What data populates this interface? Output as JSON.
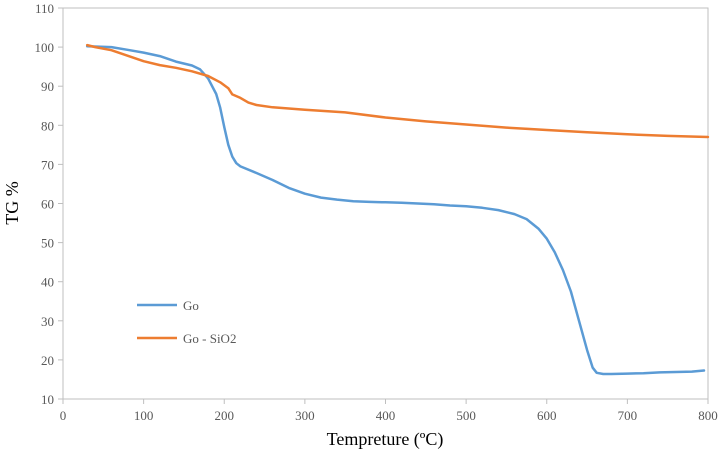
{
  "chart_data": {
    "type": "line",
    "title": "",
    "xlabel": "Tempreture (ºC)",
    "ylabel": "TG %",
    "xlim": [
      0,
      800
    ],
    "ylim": [
      10,
      110
    ],
    "xticks": [
      0,
      100,
      200,
      300,
      400,
      500,
      600,
      700,
      800
    ],
    "yticks": [
      10,
      20,
      30,
      40,
      50,
      60,
      70,
      80,
      90,
      100,
      110
    ],
    "grid": false,
    "legend_position": "left",
    "series": [
      {
        "name": "Go",
        "color": "#5B9BD5",
        "points": [
          [
            30,
            100.2
          ],
          [
            60,
            100.0
          ],
          [
            80,
            99.3
          ],
          [
            100,
            98.6
          ],
          [
            120,
            97.7
          ],
          [
            140,
            96.3
          ],
          [
            160,
            95.3
          ],
          [
            170,
            94.3
          ],
          [
            180,
            92.0
          ],
          [
            190,
            88.0
          ],
          [
            195,
            84.5
          ],
          [
            200,
            79.5
          ],
          [
            205,
            75.0
          ],
          [
            210,
            72.0
          ],
          [
            215,
            70.3
          ],
          [
            220,
            69.5
          ],
          [
            240,
            67.8
          ],
          [
            260,
            66.0
          ],
          [
            280,
            64.0
          ],
          [
            300,
            62.5
          ],
          [
            320,
            61.5
          ],
          [
            340,
            61.0
          ],
          [
            360,
            60.6
          ],
          [
            380,
            60.4
          ],
          [
            400,
            60.3
          ],
          [
            420,
            60.2
          ],
          [
            440,
            60.0
          ],
          [
            460,
            59.8
          ],
          [
            480,
            59.5
          ],
          [
            500,
            59.3
          ],
          [
            520,
            58.9
          ],
          [
            540,
            58.3
          ],
          [
            560,
            57.3
          ],
          [
            575,
            56.0
          ],
          [
            590,
            53.5
          ],
          [
            600,
            51.0
          ],
          [
            610,
            47.5
          ],
          [
            620,
            43.0
          ],
          [
            630,
            37.5
          ],
          [
            640,
            30.0
          ],
          [
            650,
            22.5
          ],
          [
            657,
            18.0
          ],
          [
            662,
            16.7
          ],
          [
            670,
            16.4
          ],
          [
            680,
            16.4
          ],
          [
            700,
            16.5
          ],
          [
            720,
            16.6
          ],
          [
            740,
            16.8
          ],
          [
            760,
            16.9
          ],
          [
            780,
            17.0
          ],
          [
            795,
            17.3
          ]
        ]
      },
      {
        "name": "Go - SiO2",
        "color": "#ED7D31",
        "points": [
          [
            30,
            100.5
          ],
          [
            40,
            100.0
          ],
          [
            60,
            99.2
          ],
          [
            80,
            97.8
          ],
          [
            100,
            96.4
          ],
          [
            120,
            95.4
          ],
          [
            140,
            94.7
          ],
          [
            160,
            93.8
          ],
          [
            180,
            92.6
          ],
          [
            195,
            91.0
          ],
          [
            205,
            89.5
          ],
          [
            210,
            87.9
          ],
          [
            220,
            87.0
          ],
          [
            230,
            85.8
          ],
          [
            240,
            85.2
          ],
          [
            260,
            84.6
          ],
          [
            280,
            84.3
          ],
          [
            300,
            84.0
          ],
          [
            350,
            83.3
          ],
          [
            400,
            82.0
          ],
          [
            450,
            81.0
          ],
          [
            500,
            80.2
          ],
          [
            550,
            79.4
          ],
          [
            600,
            78.8
          ],
          [
            650,
            78.2
          ],
          [
            700,
            77.7
          ],
          [
            750,
            77.3
          ],
          [
            800,
            77.0
          ]
        ]
      }
    ]
  }
}
